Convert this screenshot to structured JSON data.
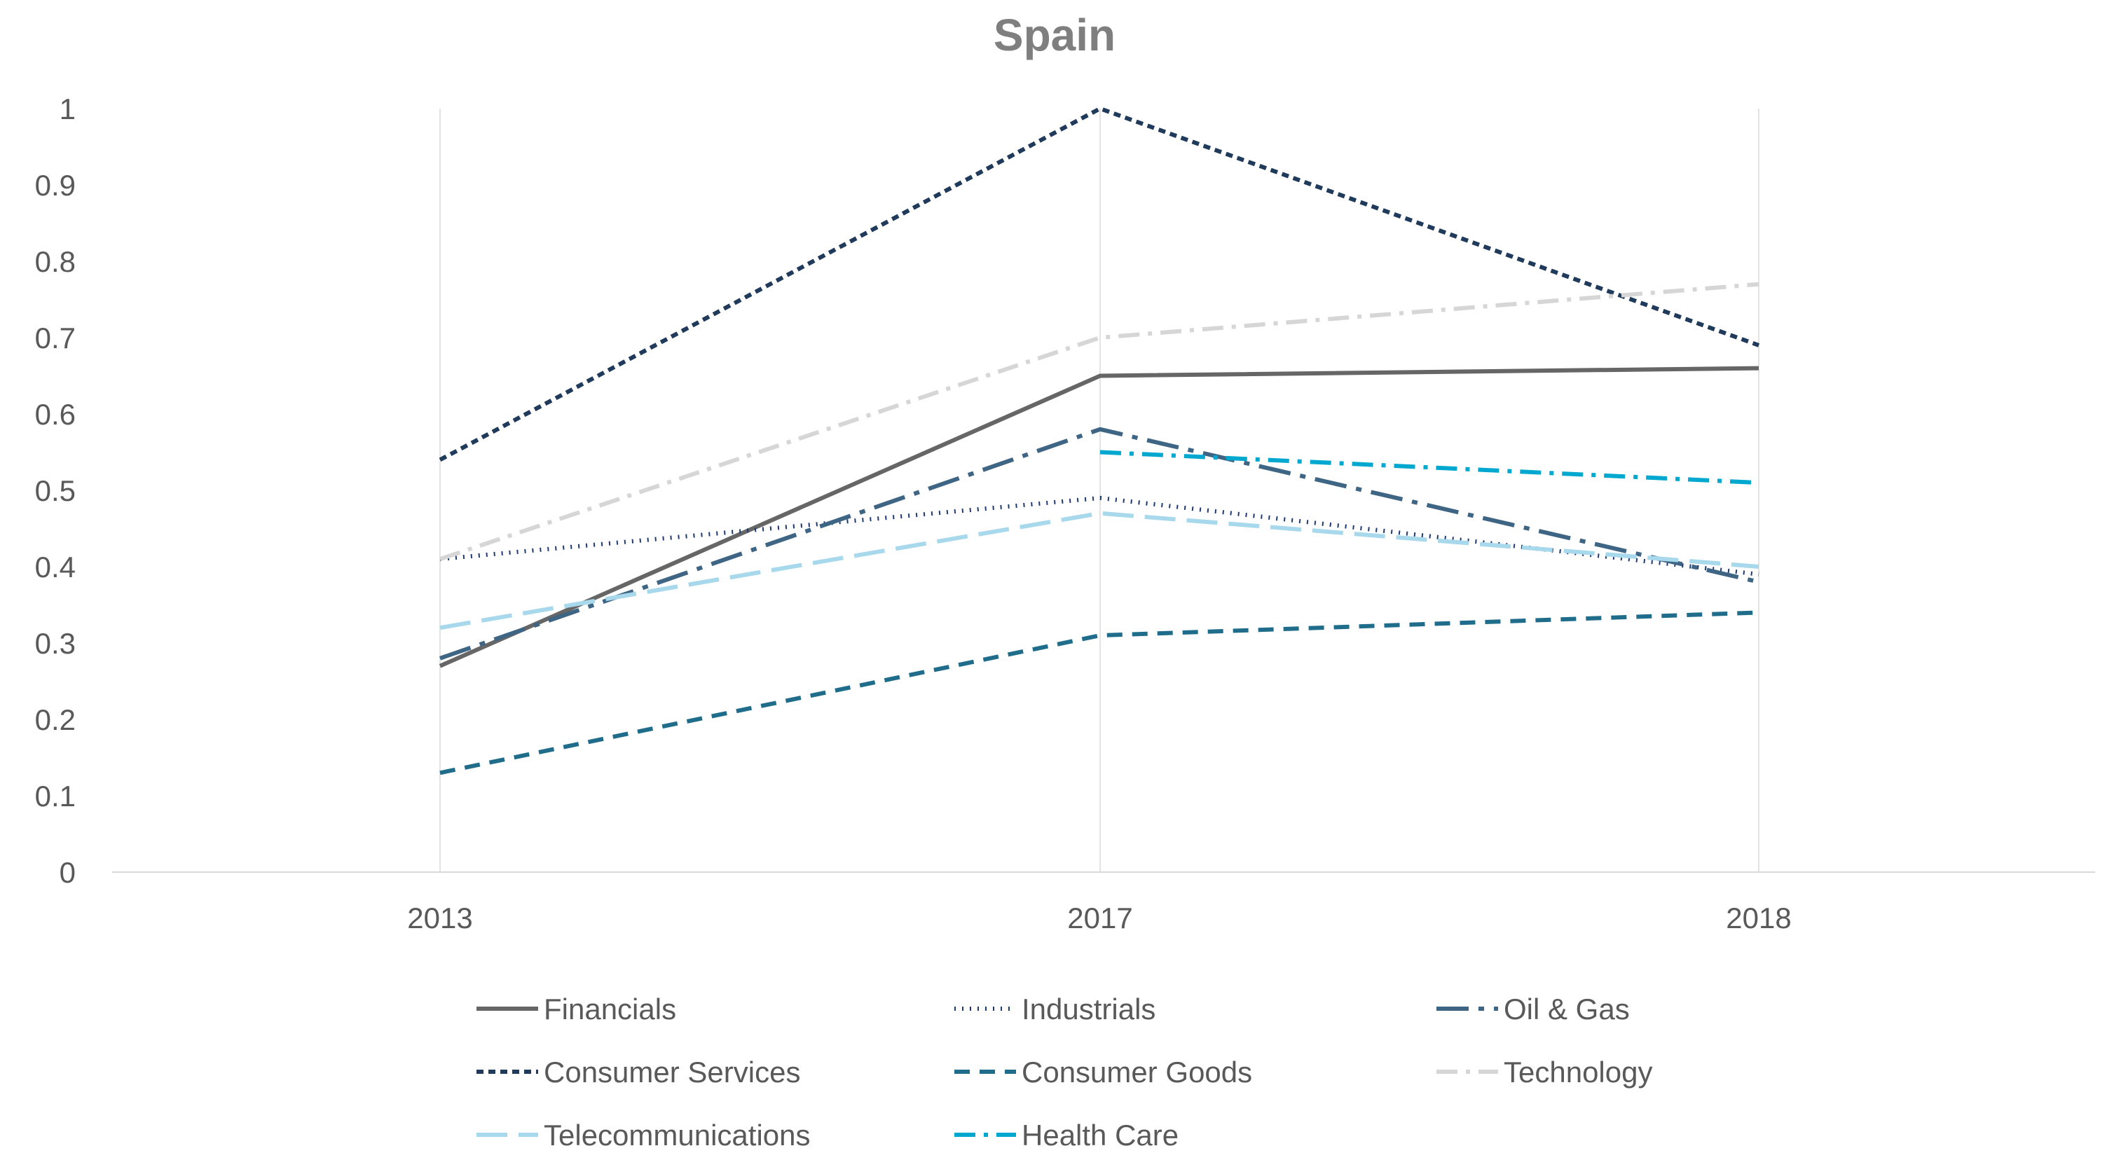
{
  "chart_data": {
    "type": "line",
    "title": "Spain",
    "xlabel": "",
    "ylabel": "",
    "categories": [
      "2013",
      "2017",
      "2018"
    ],
    "ylim": [
      0,
      1
    ],
    "yticks": [
      "0",
      "0.1",
      "0.2",
      "0.3",
      "0.4",
      "0.5",
      "0.6",
      "0.7",
      "0.8",
      "0.9",
      "1"
    ],
    "grid": "vertical",
    "legend_position": "bottom",
    "series": [
      {
        "name": "Financials",
        "values": [
          0.27,
          0.65,
          0.66
        ],
        "color": "#666666",
        "dash": "solid"
      },
      {
        "name": "Industrials",
        "values": [
          0.41,
          0.49,
          0.39
        ],
        "color": "#1f3a73",
        "dash": "dot"
      },
      {
        "name": "Oil & Gas",
        "values": [
          0.28,
          0.58,
          0.38
        ],
        "color": "#3f6585",
        "dash": "longdashdot"
      },
      {
        "name": "Consumer Services",
        "values": [
          0.54,
          1.0,
          0.69
        ],
        "color": "#1f3a5a",
        "dash": "shortdash"
      },
      {
        "name": "Consumer Goods",
        "values": [
          0.13,
          0.31,
          0.34
        ],
        "color": "#1f6d8a",
        "dash": "dash"
      },
      {
        "name": "Technology",
        "values": [
          0.41,
          0.7,
          0.77
        ],
        "color": "#d6d6d6",
        "dash": "dashdot"
      },
      {
        "name": "Telecommunications",
        "values": [
          0.32,
          0.47,
          0.4
        ],
        "color": "#a8d8ec",
        "dash": "longdash"
      },
      {
        "name": "Health Care",
        "values": [
          null,
          0.55,
          0.51
        ],
        "color": "#00a8d0",
        "dash": "dashdot"
      }
    ]
  }
}
